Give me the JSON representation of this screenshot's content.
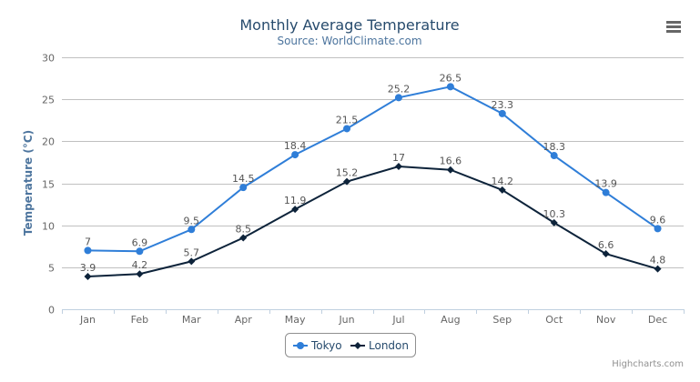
{
  "chart_data": {
    "type": "line",
    "title": "Monthly Average Temperature",
    "subtitle": "Source: WorldClimate.com",
    "xlabel": "",
    "ylabel": "Temperature (°C)",
    "ylim": [
      0,
      30
    ],
    "yticks": [
      0,
      5,
      10,
      15,
      20,
      25,
      30
    ],
    "grid": true,
    "legend": "bottom-center",
    "categories": [
      "Jan",
      "Feb",
      "Mar",
      "Apr",
      "May",
      "Jun",
      "Jul",
      "Aug",
      "Sep",
      "Oct",
      "Nov",
      "Dec"
    ],
    "series": [
      {
        "name": "Tokyo",
        "color": "#2f7ed8",
        "marker": "circle",
        "values": [
          7,
          6.9,
          9.5,
          14.5,
          18.4,
          21.5,
          25.2,
          26.5,
          23.3,
          18.3,
          13.9,
          9.6
        ]
      },
      {
        "name": "London",
        "color": "#0d233a",
        "marker": "diamond",
        "values": [
          3.9,
          4.2,
          5.7,
          8.5,
          11.9,
          15.2,
          17,
          16.6,
          14.2,
          10.3,
          6.6,
          4.8
        ]
      }
    ]
  },
  "credits": "Highcharts.com",
  "menu_icon": "hamburger-menu-icon"
}
